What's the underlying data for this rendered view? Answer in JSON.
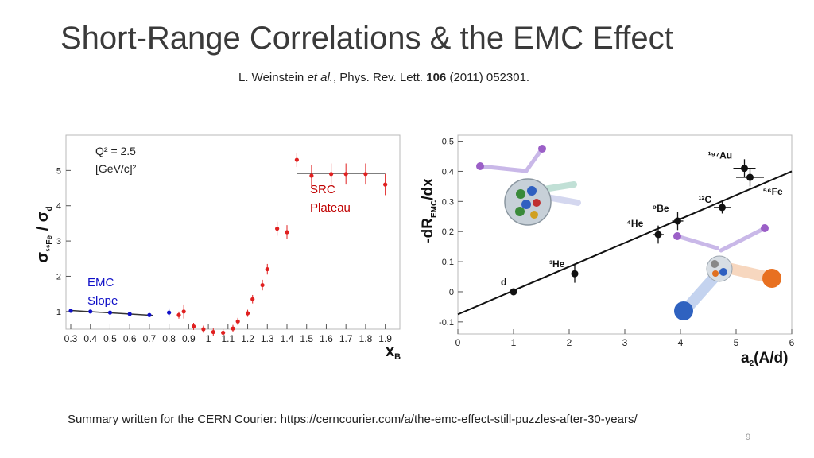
{
  "slide": {
    "title": "Short-Range Correlations & the EMC Effect",
    "citation": {
      "authors": "L. Weinstein",
      "etal": "et al.",
      "journal": ", Phys. Rev. Lett.",
      "volume": "106",
      "rest": "(2011) 052301."
    },
    "footer": "Summary written for the CERN Courier: https://cerncourier.com/a/the-emc-effect-still-puzzles-after-30-years/",
    "page_number": "9"
  },
  "chart_data": [
    {
      "type": "scatter",
      "ylabel_main": "σ",
      "ylabel_sub": "⁵⁶Fe",
      "ylabel_div": " / σ",
      "ylabel_sub2": "d",
      "xlabel": "x",
      "xlabel_sub": "B",
      "xlim": [
        0.3,
        1.95
      ],
      "ylim": [
        0.5,
        6.0
      ],
      "xticks": [
        "0.3",
        "0.4",
        "0.5",
        "0.6",
        "0.7",
        "0.8",
        "0.9",
        "1",
        "1.1",
        "1.2",
        "1.3",
        "1.4",
        "1.5",
        "1.6",
        "1.7",
        "1.8",
        "1.9"
      ],
      "yticks": [
        "1",
        "2",
        "3",
        "4",
        "5"
      ],
      "grid": false,
      "annotations": {
        "q2_line1": "Q² = 2.5",
        "q2_line2": "[GeV/c]²",
        "src_line1": "SRC",
        "src_line2": "Plateau",
        "emc_line1": "EMC",
        "emc_line2": "Slope"
      },
      "colors": {
        "emc": "#1010c8",
        "src": "#e02020",
        "plateau_line": "#333333",
        "annotation_src": "#c00000",
        "annotation_emc": "#1010c8"
      },
      "series": [
        {
          "x": [
            0.3,
            0.4,
            0.5,
            0.6,
            0.7,
            0.8
          ],
          "y": [
            1.02,
            1.0,
            0.97,
            0.93,
            0.9,
            0.97
          ],
          "yerr": [
            0.02,
            0.02,
            0.02,
            0.02,
            0.02,
            0.12
          ]
        },
        {
          "x": [
            0.85,
            0.875,
            0.925,
            0.975,
            1.025,
            1.075,
            1.125,
            1.15,
            1.2,
            1.225,
            1.275,
            1.3,
            1.35,
            1.4,
            1.45,
            1.525,
            1.625,
            1.7,
            1.8,
            1.9
          ],
          "y": [
            0.9,
            1.0,
            0.58,
            0.5,
            0.42,
            0.4,
            0.52,
            0.72,
            0.95,
            1.35,
            1.75,
            2.2,
            3.35,
            3.25,
            5.3,
            4.85,
            4.9,
            4.9,
            4.9,
            4.6
          ],
          "yerr": [
            0.1,
            0.2,
            0.1,
            0.1,
            0.1,
            0.1,
            0.1,
            0.1,
            0.1,
            0.12,
            0.15,
            0.15,
            0.2,
            0.2,
            0.2,
            0.3,
            0.3,
            0.3,
            0.3,
            0.3
          ]
        }
      ],
      "plateau": {
        "x": [
          1.45,
          1.9
        ],
        "y": 4.92
      },
      "emc_fit": {
        "x": [
          0.3,
          0.72
        ],
        "y": [
          1.03,
          0.89
        ]
      }
    },
    {
      "type": "scatter",
      "ylabel": "-dR",
      "ylabel_sub": "EMC",
      "ylabel_tail": "/dx",
      "xlabel": "a",
      "xlabel_sub": "2",
      "xlabel_tail": "(A/d)",
      "xlim": [
        0,
        6
      ],
      "ylim": [
        -0.14,
        0.52
      ],
      "xticks": [
        "0",
        "1",
        "2",
        "3",
        "4",
        "5",
        "6"
      ],
      "yticks": [
        "-0.1",
        "0",
        "0.1",
        "0.2",
        "0.3",
        "0.4",
        "0.5"
      ],
      "grid": false,
      "series": [
        {
          "labels": [
            "d",
            "³He",
            "⁴He",
            "⁹Be",
            "¹²C",
            "¹⁹⁷Au",
            "⁵⁶Fe"
          ],
          "x": [
            1.0,
            2.1,
            3.6,
            3.95,
            4.75,
            5.15,
            5.25
          ],
          "y": [
            0.0,
            0.06,
            0.19,
            0.235,
            0.28,
            0.41,
            0.38
          ],
          "xerr": [
            0.0,
            0.0,
            0.1,
            0.1,
            0.15,
            0.2,
            0.25
          ],
          "yerr": [
            0.0,
            0.03,
            0.03,
            0.03,
            0.02,
            0.03,
            0.03
          ]
        }
      ],
      "fit": {
        "x": [
          0,
          6
        ],
        "y": [
          -0.075,
          0.4
        ]
      }
    }
  ]
}
